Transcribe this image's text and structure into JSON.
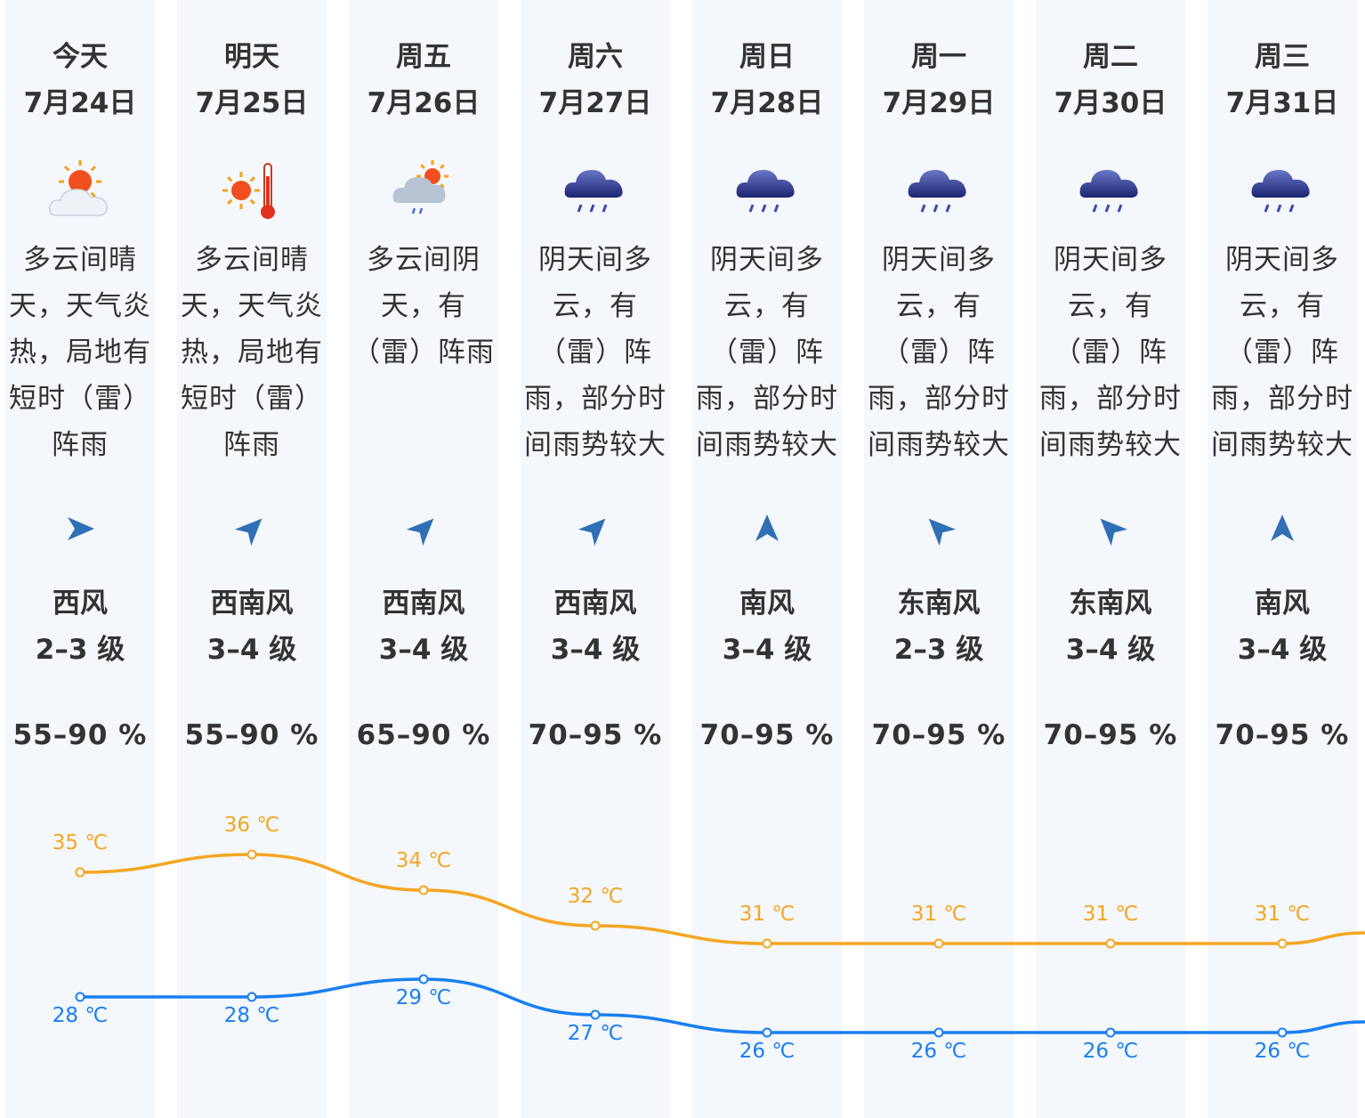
{
  "days": [
    {
      "day": "今天",
      "date": "7月24日",
      "icon": "sun-cloud-icon",
      "desc": "多云间晴天，天气炎热，局地有短时（雷）阵雨",
      "wind_icon": "wind-arrow-icon",
      "wind_deg": 0,
      "wind_dir": "西风",
      "wind_level": "2–3 级",
      "humidity": "55–90 %"
    },
    {
      "day": "明天",
      "date": "7月25日",
      "icon": "sun-thermometer-icon",
      "desc": "多云间晴天，天气炎热，局地有短时（雷）阵雨",
      "wind_icon": "wind-arrow-icon",
      "wind_deg": -45,
      "wind_dir": "西南风",
      "wind_level": "3–4 级",
      "humidity": "55–90 %"
    },
    {
      "day": "周五",
      "date": "7月26日",
      "icon": "cloud-sun-rain-icon",
      "desc": "多云间阴天，有（雷）阵雨",
      "wind_icon": "wind-arrow-icon",
      "wind_deg": -45,
      "wind_dir": "西南风",
      "wind_level": "3–4 级",
      "humidity": "65–90 %"
    },
    {
      "day": "周六",
      "date": "7月27日",
      "icon": "rain-cloud-icon",
      "desc": "阴天间多云，有（雷）阵雨，部分时间雨势较大",
      "wind_icon": "wind-arrow-icon",
      "wind_deg": -45,
      "wind_dir": "西南风",
      "wind_level": "3–4 级",
      "humidity": "70–95 %"
    },
    {
      "day": "周日",
      "date": "7月28日",
      "icon": "rain-cloud-icon",
      "desc": "阴天间多云，有（雷）阵雨，部分时间雨势较大",
      "wind_icon": "wind-arrow-icon",
      "wind_deg": -90,
      "wind_dir": "南风",
      "wind_level": "3–4 级",
      "humidity": "70–95 %"
    },
    {
      "day": "周一",
      "date": "7月29日",
      "icon": "rain-cloud-icon",
      "desc": "阴天间多云，有（雷）阵雨，部分时间雨势较大",
      "wind_icon": "wind-arrow-icon",
      "wind_deg": -135,
      "wind_dir": "东南风",
      "wind_level": "2–3 级",
      "humidity": "70–95 %"
    },
    {
      "day": "周二",
      "date": "7月30日",
      "icon": "rain-cloud-icon",
      "desc": "阴天间多云，有（雷）阵雨，部分时间雨势较大",
      "wind_icon": "wind-arrow-icon",
      "wind_deg": -135,
      "wind_dir": "东南风",
      "wind_level": "3–4 级",
      "humidity": "70–95 %"
    },
    {
      "day": "周三",
      "date": "7月31日",
      "icon": "rain-cloud-icon",
      "desc": "阴天间多云，有（雷）阵雨，部分时间雨势较大",
      "wind_icon": "wind-arrow-icon",
      "wind_deg": -90,
      "wind_dir": "南风",
      "wind_level": "3–4 级",
      "humidity": "70–95 %"
    }
  ],
  "colors": {
    "high": "#f5a623",
    "low": "#1a7ff0",
    "column_bg": "#f4f7fb",
    "arrow": "#2f6fb5"
  },
  "chart_data": {
    "type": "line",
    "categories": [
      "7月24日",
      "7月25日",
      "7月26日",
      "7月27日",
      "7月28日",
      "7月29日",
      "7月30日",
      "7月31日"
    ],
    "unit": "℃",
    "series": [
      {
        "values": [
          35,
          36,
          34,
          32,
          31,
          31,
          31,
          31
        ]
      },
      {
        "values": [
          28,
          28,
          29,
          27,
          26,
          26,
          26,
          26
        ]
      }
    ]
  }
}
